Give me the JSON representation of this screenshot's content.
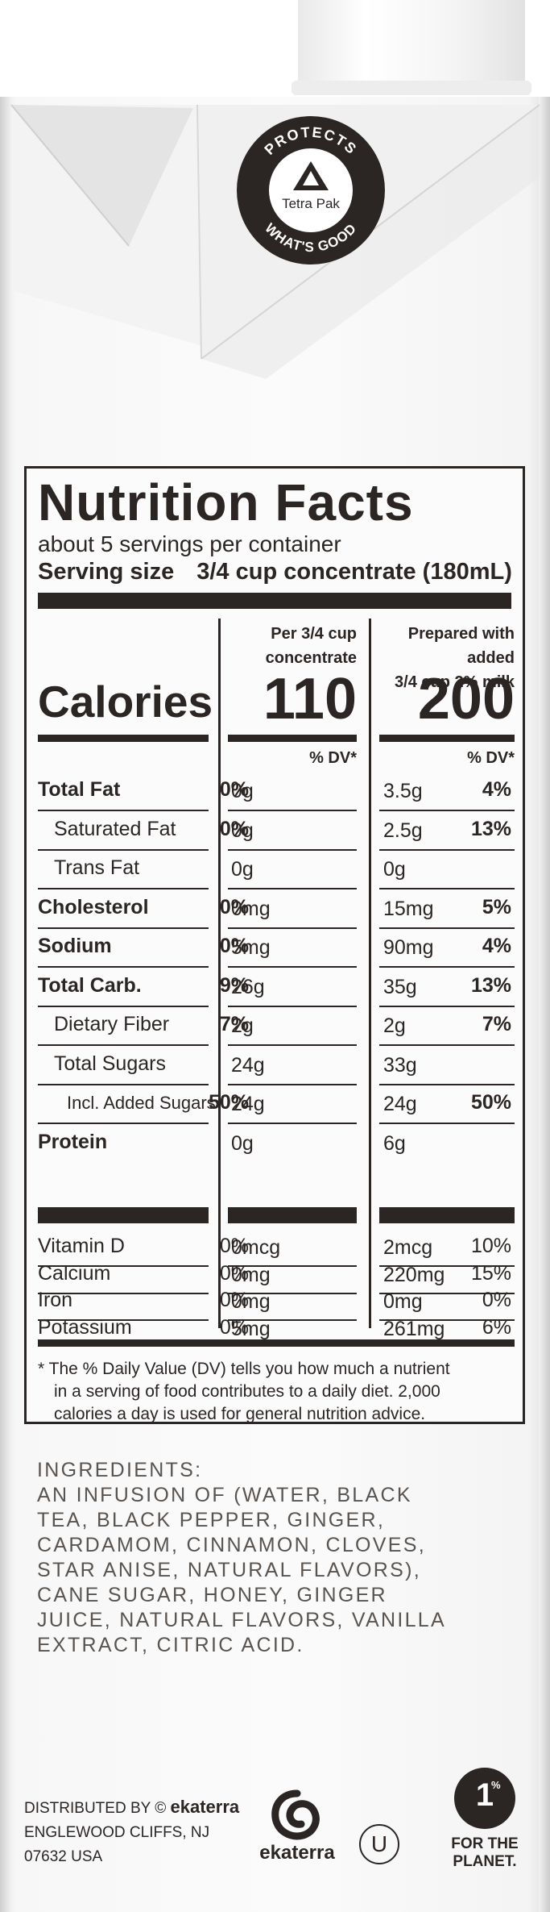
{
  "seal": {
    "top_text": "PROTECTS",
    "brand": "Tetra Pak",
    "bottom_text": "WHAT'S GOOD"
  },
  "nutrition": {
    "title": "Nutrition Facts",
    "servings": "about 5 servings per container",
    "serving_size_label": "Serving size",
    "serving_size_value": "3/4 cup concentrate (180mL)",
    "col1_head_line1": "Per 3/4 cup",
    "col1_head_line2": "concentrate",
    "col2_head_line1": "Prepared with added",
    "col2_head_line2": "3/4 cup 2% milk",
    "calories_label": "Calories",
    "calories_col1": "110",
    "calories_col2": "200",
    "dv_head": "% DV*",
    "rows": [
      {
        "name": "Total Fat",
        "amt1": "0g",
        "dv1": "0%",
        "amt2": "3.5g",
        "dv2": "4%"
      },
      {
        "name": "Saturated Fat",
        "amt1": "0g",
        "dv1": "0%",
        "amt2": "2.5g",
        "dv2": "13%"
      },
      {
        "name": "Trans Fat",
        "amt1": "0g",
        "dv1": "",
        "amt2": "0g",
        "dv2": ""
      },
      {
        "name": "Cholesterol",
        "amt1": "0mg",
        "dv1": "0%",
        "amt2": "15mg",
        "dv2": "5%"
      },
      {
        "name": "Sodium",
        "amt1": "5mg",
        "dv1": "0%",
        "amt2": "90mg",
        "dv2": "4%"
      },
      {
        "name": "Total Carb.",
        "amt1": "26g",
        "dv1": "9%",
        "amt2": "35g",
        "dv2": "13%"
      },
      {
        "name": "Dietary Fiber",
        "amt1": "2g",
        "dv1": "7%",
        "amt2": "2g",
        "dv2": "7%"
      },
      {
        "name": "Total Sugars",
        "amt1": "24g",
        "dv1": "",
        "amt2": "33g",
        "dv2": ""
      },
      {
        "name": "Incl. Added Sugars",
        "amt1": "24g",
        "dv1": "50%",
        "amt2": "24g",
        "dv2": "50%"
      },
      {
        "name": "Protein",
        "amt1": "0g",
        "dv1": "",
        "amt2": "6g",
        "dv2": ""
      }
    ],
    "vitamins": [
      {
        "name": "Vitamin D",
        "amt1": "0mcg",
        "dv1": "0%",
        "amt2": "2mcg",
        "dv2": "10%"
      },
      {
        "name": "Calcium",
        "amt1": "0mg",
        "dv1": "0%",
        "amt2": "220mg",
        "dv2": "15%"
      },
      {
        "name": "Iron",
        "amt1": "0mg",
        "dv1": "0%",
        "amt2": "0mg",
        "dv2": "0%"
      },
      {
        "name": "Potassium",
        "amt1": "5mg",
        "dv1": "0%",
        "amt2": "261mg",
        "dv2": "6%"
      }
    ],
    "footnote_line1": "* The % Daily Value (DV) tells you how much a nutrient",
    "footnote_line2": "in a serving of food contributes to a daily diet. 2,000",
    "footnote_line3": "calories a day is used for general nutrition advice."
  },
  "ingredients": {
    "heading": "INGREDIENTS:",
    "lines": [
      "AN INFUSION OF (WATER, BLACK",
      "TEA, BLACK PEPPER, GINGER,",
      "CARDAMOM, CINNAMON, CLOVES,",
      "STAR ANISE, NATURAL FLAVORS),",
      "CANE SUGAR, HONEY, GINGER",
      "JUICE, NATURAL FLAVORS, VANILLA",
      "EXTRACT, CITRIC ACID."
    ]
  },
  "distributor": {
    "line1_prefix": "DISTRIBUTED BY ©",
    "line1_brand": "ekaterra",
    "line2": "ENGLEWOOD CLIFFS, NJ",
    "line3": "07632 USA"
  },
  "logos": {
    "ekaterra": "ekaterra",
    "kosher": "U",
    "planet_number": "1",
    "planet_percent": "%",
    "planet_line1": "FOR THE",
    "planet_line2": "PLANET."
  }
}
